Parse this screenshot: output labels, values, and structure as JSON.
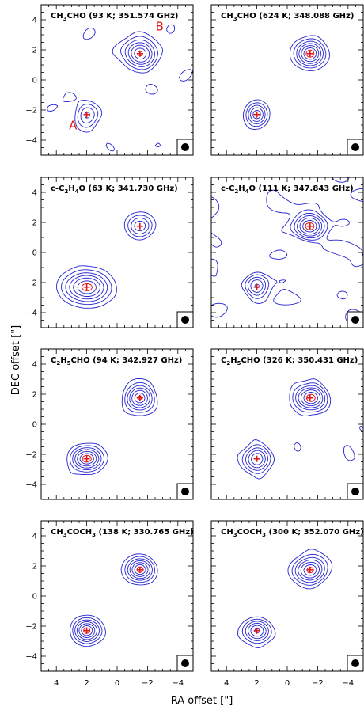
{
  "chart_data": {
    "type": "contour",
    "xlabel": "RA offset [\"]",
    "ylabel": "DEC offset [\"]",
    "xlim": [
      5,
      -5
    ],
    "ylim": [
      -5,
      5
    ],
    "xticks": [
      4,
      2,
      0,
      -2,
      -4
    ],
    "yticks": [
      -4,
      -2,
      0,
      2,
      4
    ],
    "sources": [
      {
        "name": "A",
        "x": 2.0,
        "y": -2.3
      },
      {
        "name": "B",
        "x": -1.5,
        "y": 1.75
      }
    ],
    "source_labels": [
      {
        "text": "A",
        "x": 2.9,
        "y": -3.3
      },
      {
        "text": "B",
        "x": -2.8,
        "y": 3.3
      }
    ],
    "beam_marker": "filled-circle",
    "colors": {
      "contour": "#2323cf",
      "peak_contour": "#e01818",
      "marker": "#e01818",
      "axes": "#000000"
    },
    "panels": [
      {
        "molecule": "CH3CHO",
        "title_parts": [
          [
            "CH",
            ""
          ],
          [
            "3",
            "sub"
          ],
          [
            "CHO (93 K; 351.574 GHz)",
            ""
          ]
        ],
        "A": {
          "amp": 0.45,
          "sx": 0.45,
          "sy": 0.5
        },
        "B": {
          "amp": 1.0,
          "sx": 0.6,
          "sy": 0.55
        },
        "noise": 0.55,
        "show_labels": true
      },
      {
        "molecule": "CH3CHO",
        "title_parts": [
          [
            "CH",
            ""
          ],
          [
            "3",
            "sub"
          ],
          [
            "CHO (624 K; 348.088 GHz)",
            ""
          ]
        ],
        "A": {
          "amp": 0.7,
          "sx": 0.4,
          "sy": 0.45
        },
        "B": {
          "amp": 1.0,
          "sx": 0.55,
          "sy": 0.5
        },
        "noise": 0.25,
        "show_labels": false
      },
      {
        "molecule": "c-C2H4O",
        "title_parts": [
          [
            "c-C",
            ""
          ],
          [
            "2",
            "sub"
          ],
          [
            "H",
            ""
          ],
          [
            "4",
            "sub"
          ],
          [
            "O (63 K; 341.730 GHz)",
            ""
          ]
        ],
        "A": {
          "amp": 1.0,
          "sx": 0.85,
          "sy": 0.6
        },
        "B": {
          "amp": 0.55,
          "sx": 0.5,
          "sy": 0.45
        },
        "noise": 0.15,
        "show_labels": false
      },
      {
        "molecule": "c-C2H4O",
        "title_parts": [
          [
            "c-C",
            ""
          ],
          [
            "2",
            "sub"
          ],
          [
            "H",
            ""
          ],
          [
            "4",
            "sub"
          ],
          [
            "O (111 K; 347.843 GHz)",
            ""
          ]
        ],
        "A": {
          "amp": 0.6,
          "sx": 0.45,
          "sy": 0.5
        },
        "B": {
          "amp": 1.0,
          "sx": 0.6,
          "sy": 0.55
        },
        "noise": 1.0,
        "show_labels": false
      },
      {
        "molecule": "C2H5CHO",
        "title_parts": [
          [
            "C",
            ""
          ],
          [
            "2",
            "sub"
          ],
          [
            "H",
            ""
          ],
          [
            "5",
            "sub"
          ],
          [
            "CHO (94 K; 342.927 GHz)",
            ""
          ]
        ],
        "A": {
          "amp": 0.8,
          "sx": 0.6,
          "sy": 0.45
        },
        "B": {
          "amp": 0.75,
          "sx": 0.55,
          "sy": 0.5
        },
        "noise": 0.3,
        "show_labels": false
      },
      {
        "molecule": "C2H5CHO",
        "title_parts": [
          [
            "C",
            ""
          ],
          [
            "2",
            "sub"
          ],
          [
            "H",
            ""
          ],
          [
            "5",
            "sub"
          ],
          [
            "CHO (326 K; 350.431 GHz)",
            ""
          ]
        ],
        "A": {
          "amp": 0.65,
          "sx": 0.5,
          "sy": 0.5
        },
        "B": {
          "amp": 0.8,
          "sx": 0.6,
          "sy": 0.5
        },
        "noise": 0.45,
        "show_labels": false
      },
      {
        "molecule": "CH3COCH3",
        "title_parts": [
          [
            "CH",
            ""
          ],
          [
            "3",
            "sub"
          ],
          [
            "COCH",
            ""
          ],
          [
            "3",
            "sub"
          ],
          [
            " (138 K; 330.765 GHz)",
            ""
          ]
        ],
        "A": {
          "amp": 0.9,
          "sx": 0.5,
          "sy": 0.45
        },
        "B": {
          "amp": 0.9,
          "sx": 0.5,
          "sy": 0.45
        },
        "noise": 0.2,
        "show_labels": false
      },
      {
        "molecule": "CH3COCH3",
        "title_parts": [
          [
            "CH",
            ""
          ],
          [
            "3",
            "sub"
          ],
          [
            "COCH",
            ""
          ],
          [
            "3",
            "sub"
          ],
          [
            " (300 K; 352.070 GHz)",
            ""
          ]
        ],
        "A": {
          "amp": 0.75,
          "sx": 0.5,
          "sy": 0.45
        },
        "B": {
          "amp": 0.9,
          "sx": 0.6,
          "sy": 0.5
        },
        "noise": 0.4,
        "show_labels": false
      }
    ]
  }
}
